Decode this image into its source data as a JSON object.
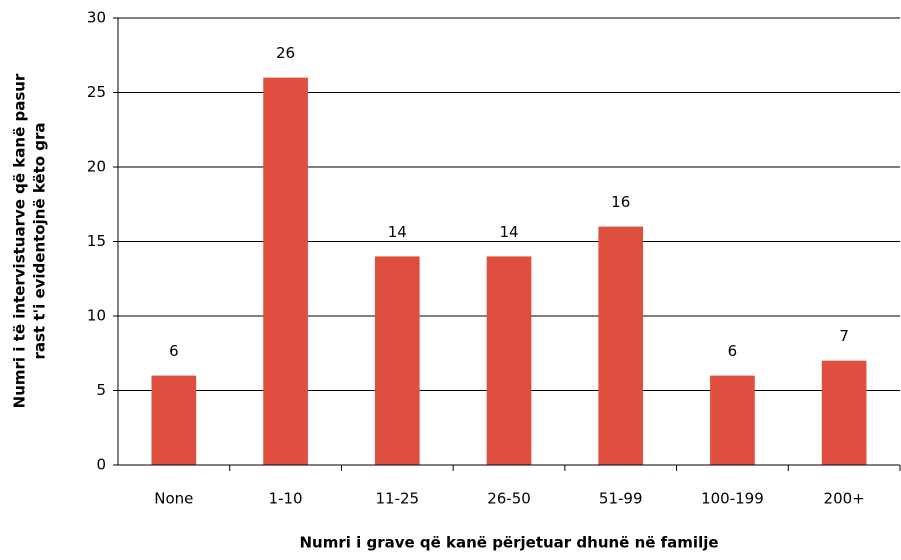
{
  "chart_data": {
    "type": "bar",
    "categories": [
      "None",
      "1-10",
      "11-25",
      "26-50",
      "51-99",
      "100-199",
      "200+"
    ],
    "values": [
      6,
      26,
      14,
      14,
      16,
      6,
      7
    ],
    "color": "#de4f3f",
    "ylim": [
      0,
      30
    ],
    "yticks": [
      0,
      5,
      10,
      15,
      20,
      25,
      30
    ],
    "grid": true,
    "x_label": "Numri i grave që kanë përjetuar dhunë në familje",
    "y_label": [
      "Numri i të intervistuarve që kanë pasur",
      "rast t'i evidentojnë këto gra"
    ]
  }
}
